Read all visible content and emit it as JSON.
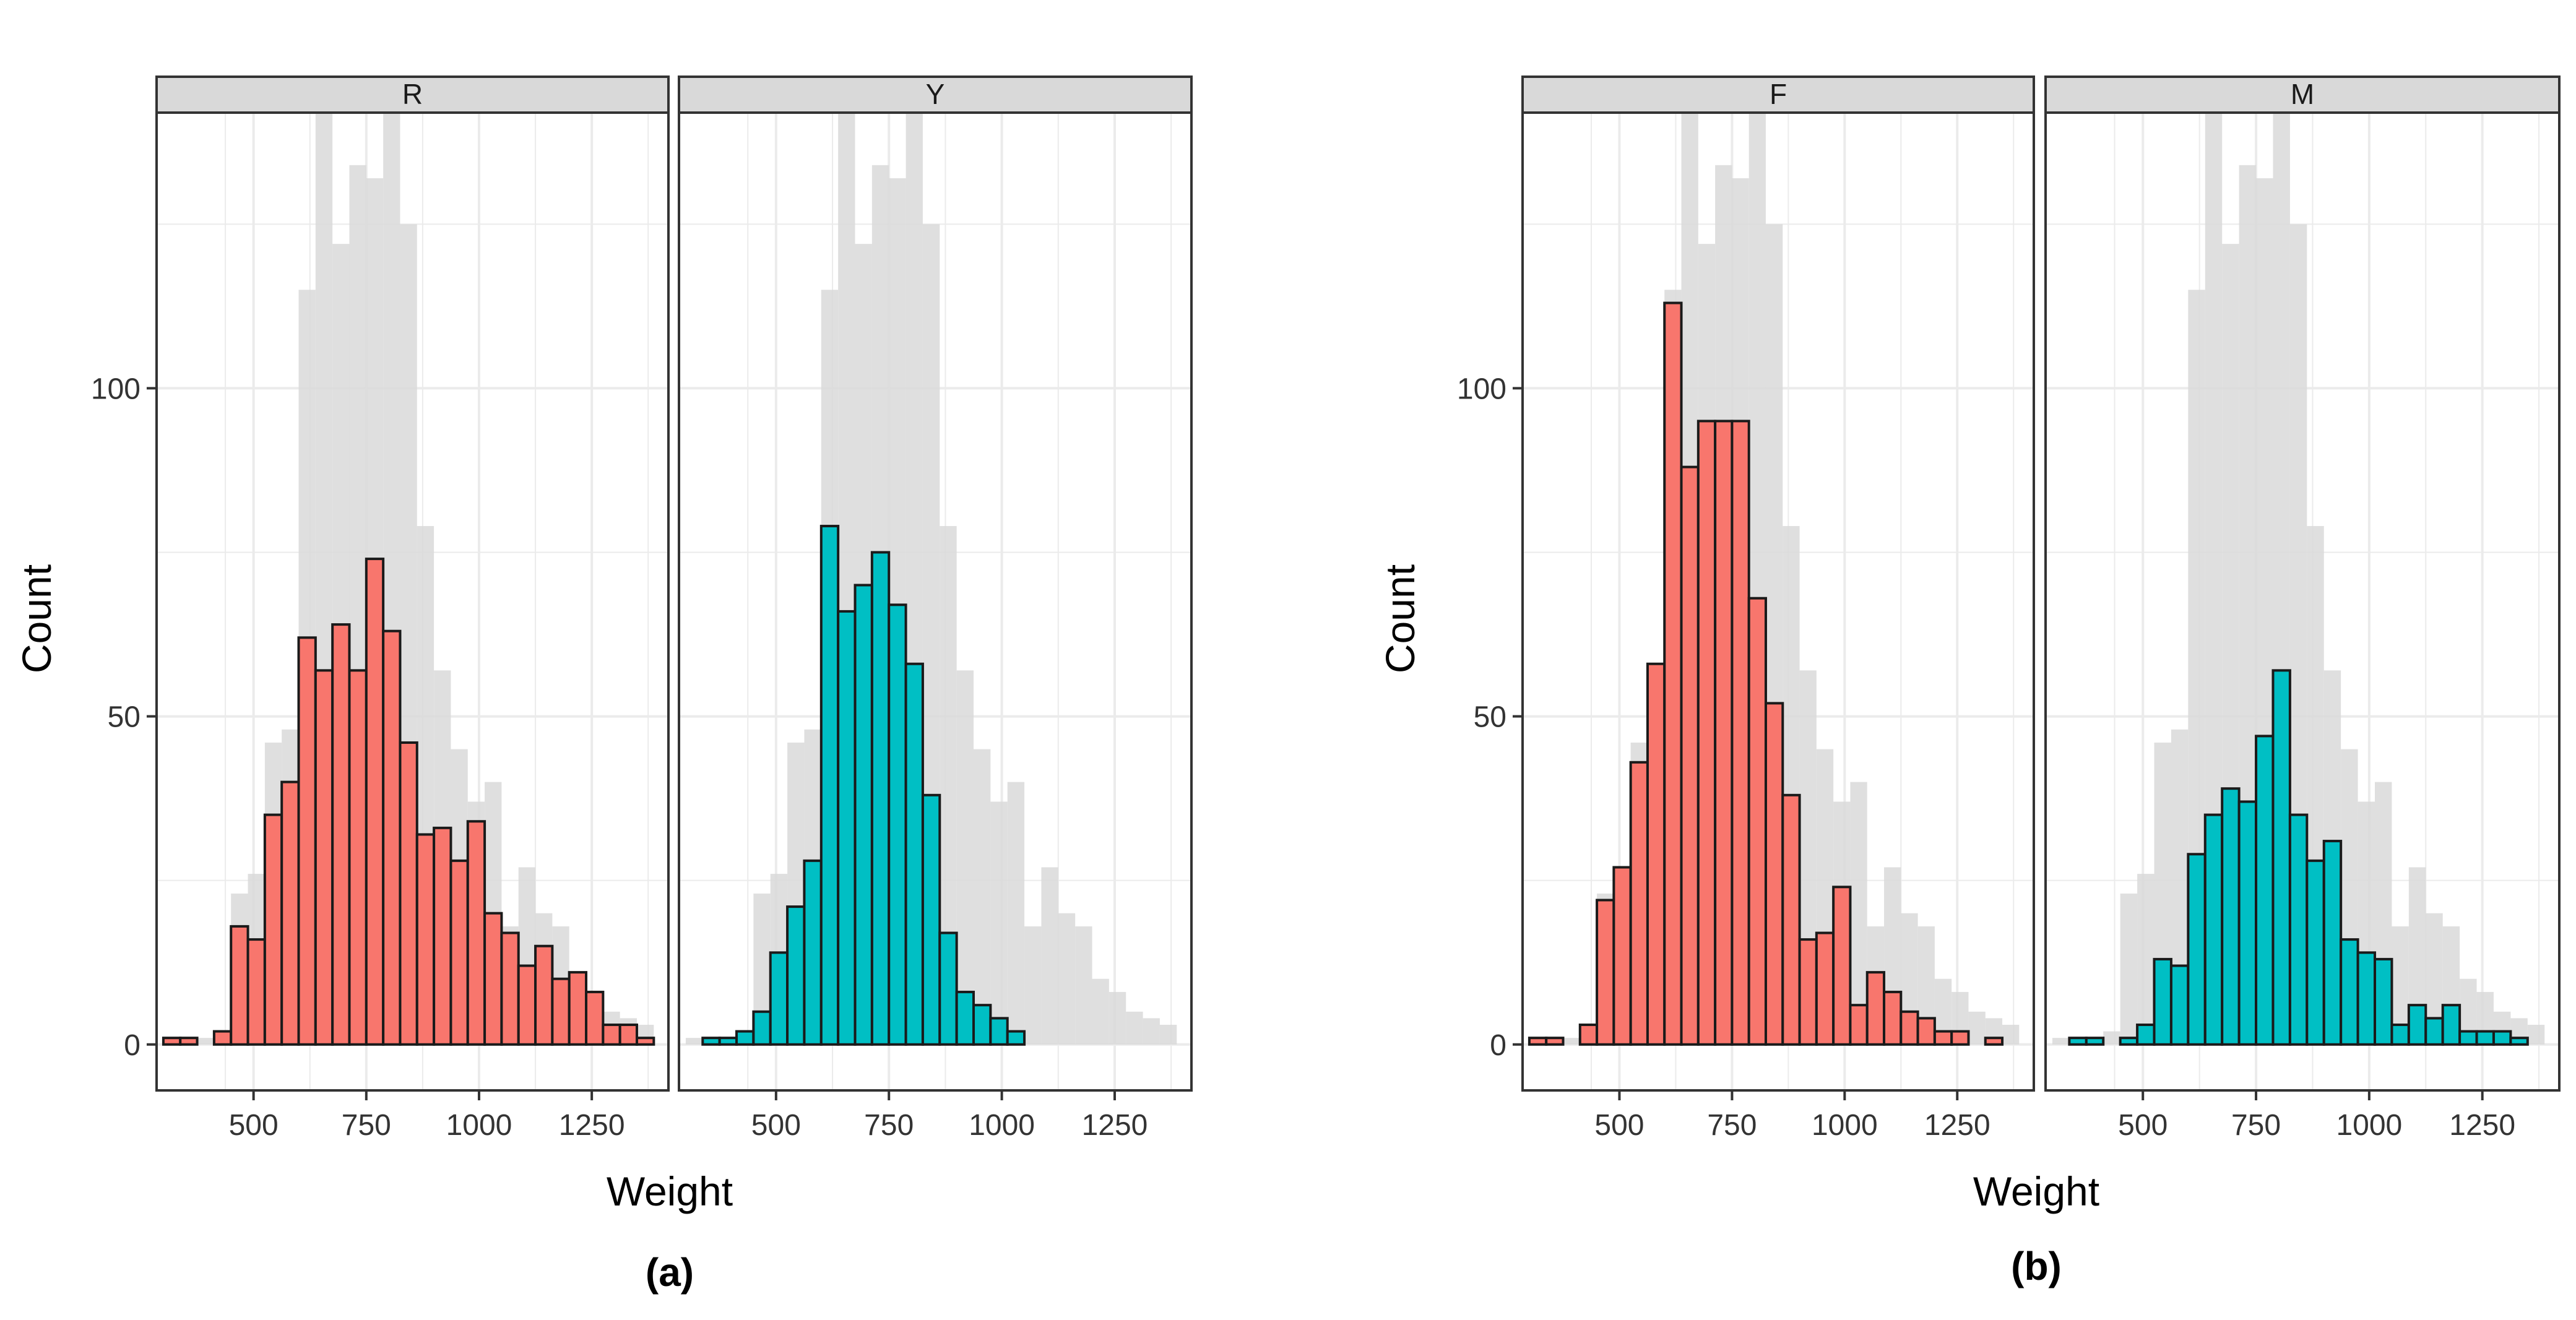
{
  "colors": {
    "background_bar": "#d9d9d9",
    "strip_fill": "#d9d9d9",
    "grid": "#ebebeb",
    "bar_outline": "#1a1a1a",
    "panel_border": "#333333",
    "red": "#f8766d",
    "teal": "#00bfc4"
  },
  "figure": {
    "caption_a": "(a)",
    "caption_b": "(b)"
  },
  "chart_data": [
    {
      "type": "bar",
      "subtype": "faceted histogram",
      "id": "a",
      "caption": "(a)",
      "xlabel": "Weight",
      "ylabel": "Count",
      "xlim": [
        285,
        1420
      ],
      "ylim": [
        -7,
        142
      ],
      "xticks": [
        500,
        750,
        1000,
        1250
      ],
      "xtick_labels": [
        "500",
        "750",
        "1000",
        "1250"
      ],
      "yticks": [
        0,
        50,
        100
      ],
      "ytick_labels": [
        "0",
        "50",
        "100"
      ],
      "bin_starts": [
        300,
        337.5,
        375,
        412.5,
        450,
        487.5,
        525,
        562.5,
        600,
        637.5,
        675,
        712.5,
        750,
        787.5,
        825,
        862.5,
        900,
        937.5,
        975,
        1012.5,
        1050,
        1087.5,
        1125,
        1162.5,
        1200,
        1237.5,
        1275,
        1312.5,
        1350
      ],
      "bin_width": 37.5,
      "background_counts": [
        1,
        1,
        1,
        2,
        23,
        26,
        46,
        48,
        115,
        143,
        122,
        134,
        132,
        143,
        125,
        79,
        57,
        45,
        37,
        40,
        18,
        27,
        20,
        18,
        10,
        8,
        5,
        4,
        3
      ],
      "facets": [
        {
          "label": "R",
          "color": "#f8766d",
          "counts": [
            1,
            1,
            0,
            2,
            18,
            16,
            35,
            40,
            62,
            57,
            64,
            57,
            74,
            63,
            46,
            32,
            33,
            28,
            34,
            20,
            17,
            12,
            15,
            10,
            11,
            8,
            3,
            3,
            1
          ]
        },
        {
          "label": "Y",
          "color": "#00bfc4",
          "counts": [
            0,
            1,
            1,
            2,
            5,
            14,
            21,
            28,
            79,
            66,
            70,
            75,
            67,
            58,
            38,
            17,
            8,
            6,
            4,
            2,
            0,
            0,
            0,
            0,
            0,
            0,
            0,
            0,
            0
          ]
        }
      ]
    },
    {
      "type": "bar",
      "subtype": "faceted histogram",
      "id": "b",
      "caption": "(b)",
      "xlabel": "Weight",
      "ylabel": "Count",
      "xlim": [
        285,
        1420
      ],
      "ylim": [
        -7,
        142
      ],
      "xticks": [
        500,
        750,
        1000,
        1250
      ],
      "xtick_labels": [
        "500",
        "750",
        "1000",
        "1250"
      ],
      "yticks": [
        0,
        50,
        100
      ],
      "ytick_labels": [
        "0",
        "50",
        "100"
      ],
      "bin_starts": [
        300,
        337.5,
        375,
        412.5,
        450,
        487.5,
        525,
        562.5,
        600,
        637.5,
        675,
        712.5,
        750,
        787.5,
        825,
        862.5,
        900,
        937.5,
        975,
        1012.5,
        1050,
        1087.5,
        1125,
        1162.5,
        1200,
        1237.5,
        1275,
        1312.5,
        1350
      ],
      "bin_width": 37.5,
      "background_counts": [
        1,
        1,
        1,
        2,
        23,
        26,
        46,
        48,
        115,
        143,
        122,
        134,
        132,
        143,
        125,
        79,
        57,
        45,
        37,
        40,
        18,
        27,
        20,
        18,
        10,
        8,
        5,
        4,
        3
      ],
      "facets": [
        {
          "label": "F",
          "color": "#f8766d",
          "counts": [
            1,
            1,
            0,
            3,
            22,
            27,
            43,
            58,
            113,
            88,
            95,
            95,
            95,
            68,
            52,
            38,
            16,
            17,
            24,
            6,
            11,
            8,
            5,
            4,
            2,
            2,
            0,
            1,
            0
          ]
        },
        {
          "label": "M",
          "color": "#00bfc4",
          "counts": [
            0,
            1,
            1,
            0,
            1,
            3,
            13,
            12,
            29,
            35,
            39,
            37,
            47,
            57,
            35,
            28,
            31,
            16,
            14,
            13,
            3,
            6,
            4,
            6,
            2,
            2,
            2,
            1,
            0
          ]
        }
      ]
    }
  ]
}
